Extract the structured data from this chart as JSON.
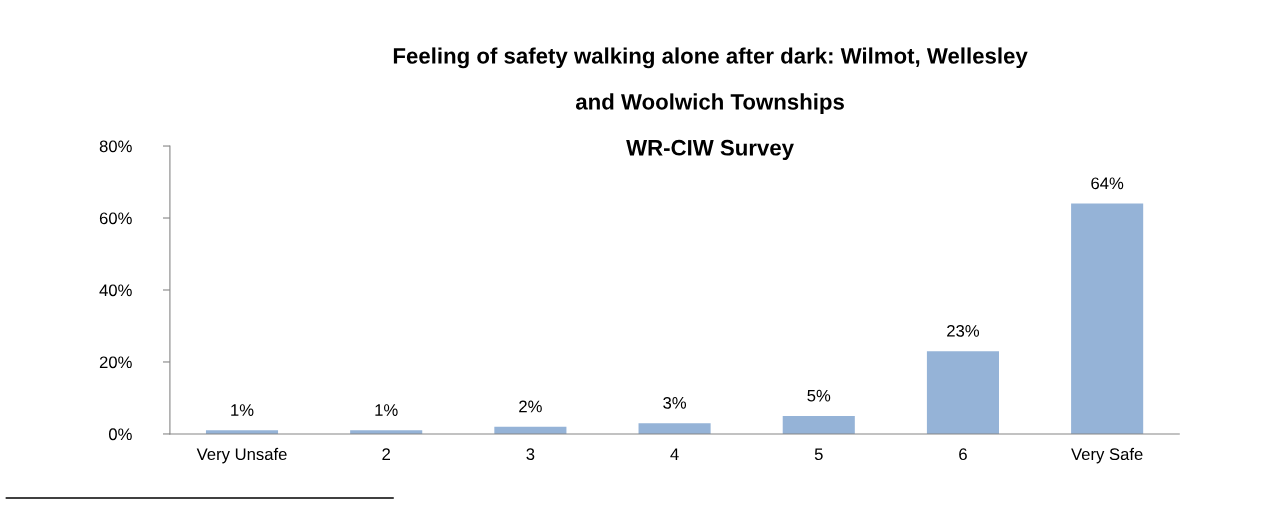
{
  "chart_data": {
    "type": "bar",
    "title": "Feeling of safety walking alone after dark: Wilmot, Wellesley and Woolwich Townships",
    "subtitle": "WR-CIW Survey",
    "categories": [
      "Very Unsafe",
      "2",
      "3",
      "4",
      "5",
      "6",
      "Very Safe"
    ],
    "values": [
      1,
      1,
      2,
      3,
      5,
      23,
      64
    ],
    "value_labels": [
      "1%",
      "1%",
      "2%",
      "3%",
      "5%",
      "23%",
      "64%"
    ],
    "color": "#95b3d7",
    "ylim": [
      0,
      80
    ],
    "yticks": [
      {
        "value": 0,
        "label": "0%"
      },
      {
        "value": 20,
        "label": "20%"
      },
      {
        "value": 40,
        "label": "40%"
      },
      {
        "value": 60,
        "label": "60%"
      },
      {
        "value": 80,
        "label": "80%"
      }
    ],
    "grid": false,
    "legend": false
  }
}
